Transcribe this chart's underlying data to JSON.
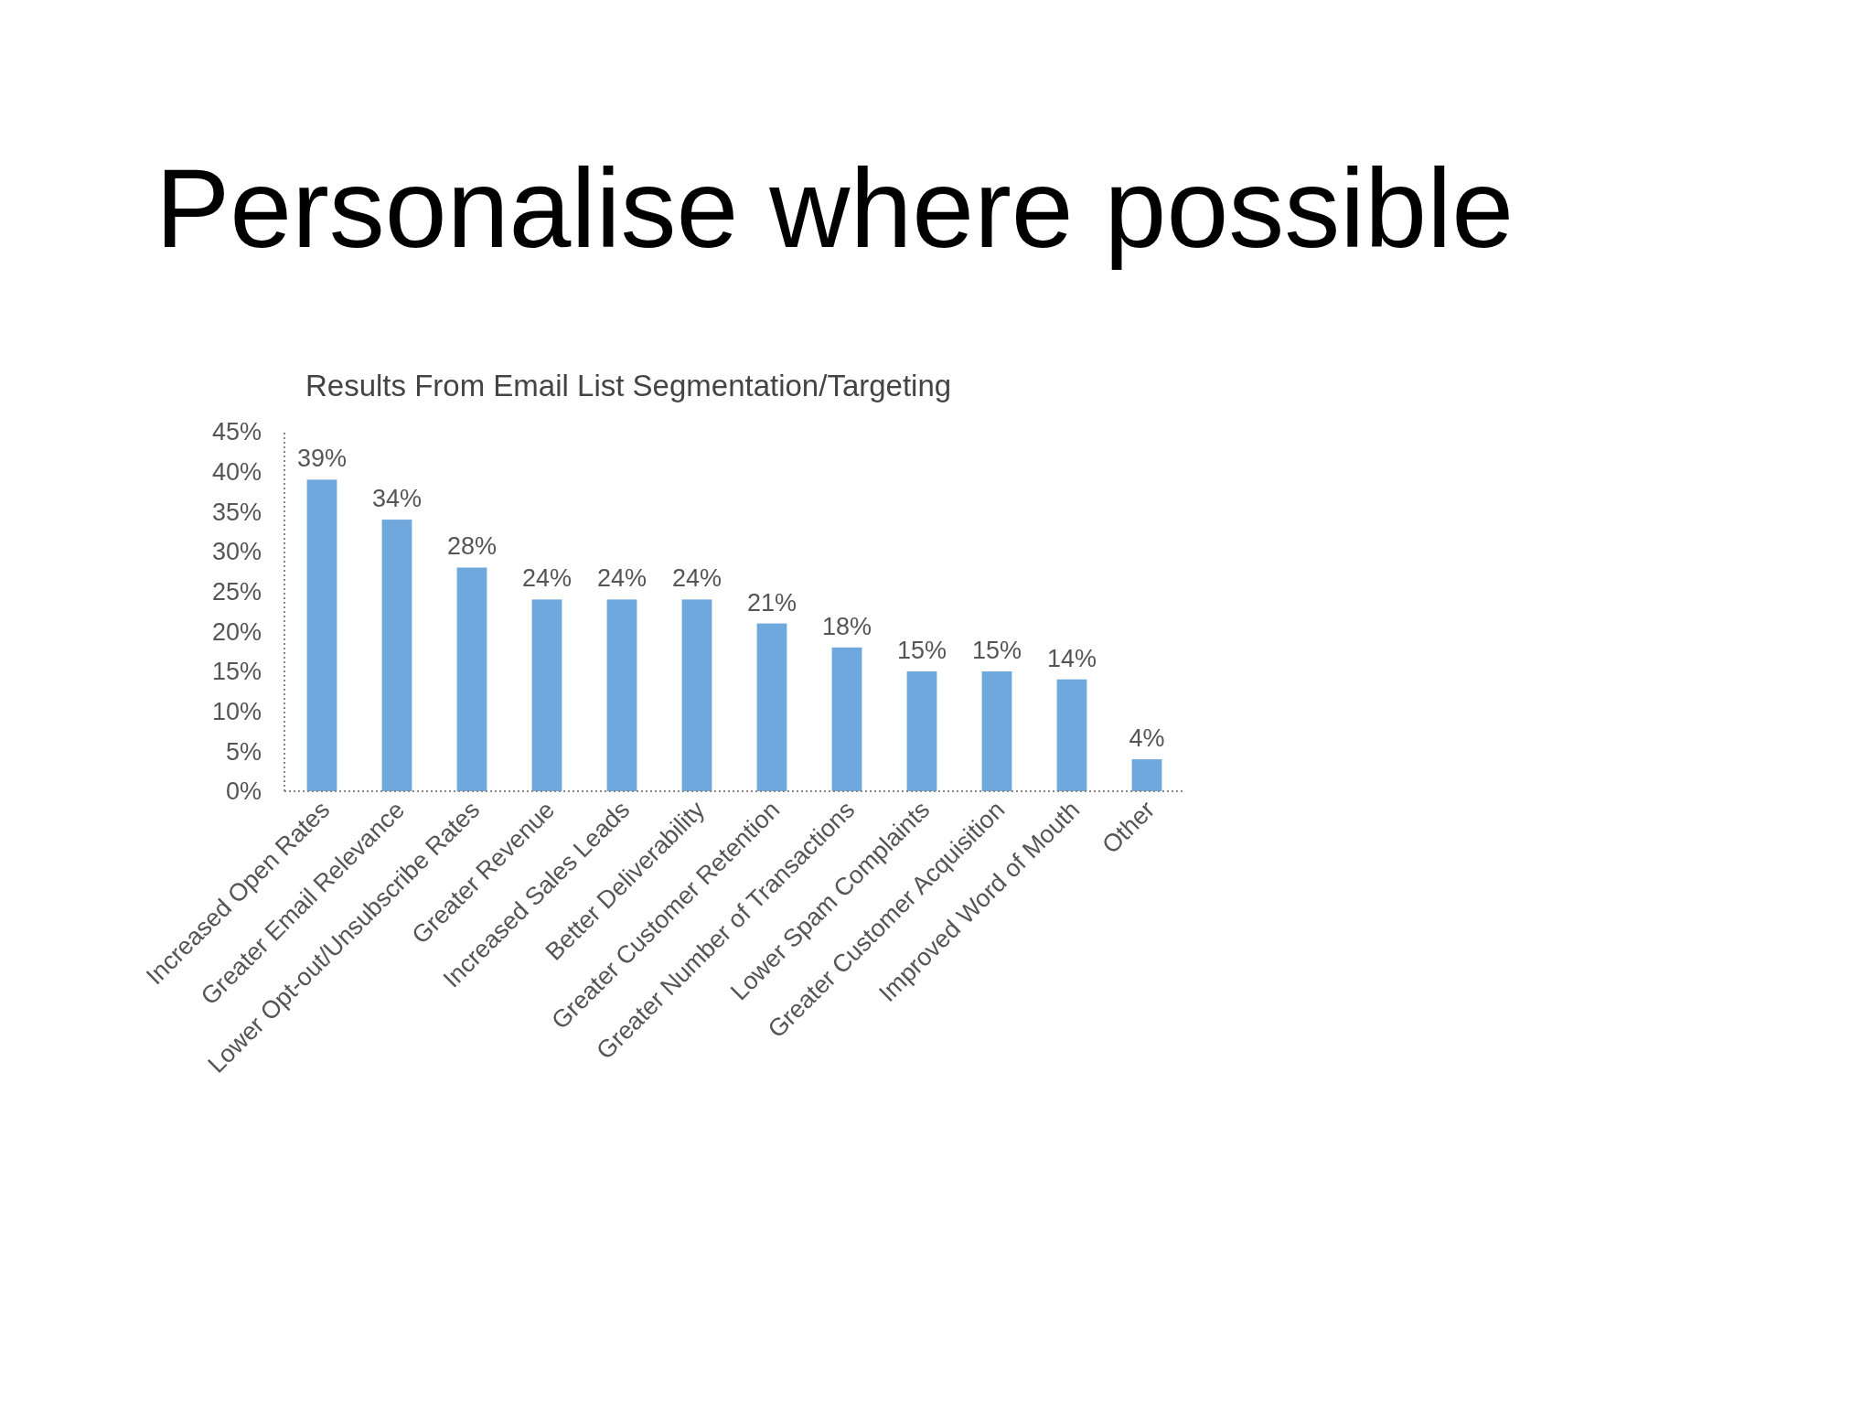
{
  "chart_data": {
    "type": "bar",
    "title": "Personalise where possible",
    "subtitle": "Results From Email List Segmentation/Targeting",
    "categories": [
      "Increased Open Rates",
      "Greater Email Relevance",
      "Lower Opt-out/Unsubscribe Rates",
      "Greater Revenue",
      "Increased Sales Leads",
      "Better Deliverability",
      "Greater Customer Retention",
      "Greater Number of Transactions",
      "Lower Spam Complaints",
      "Greater Customer Acquisition",
      "Improved Word of Mouth",
      "Other"
    ],
    "values": [
      39,
      34,
      28,
      24,
      24,
      24,
      21,
      18,
      15,
      15,
      14,
      4
    ],
    "value_labels": [
      "39%",
      "34%",
      "28%",
      "24%",
      "24%",
      "24%",
      "21%",
      "18%",
      "15%",
      "15%",
      "14%",
      "4%"
    ],
    "color": "#6fa8dc",
    "ylim": [
      0,
      45
    ],
    "yticks": [
      {
        "value": 0,
        "label": "0%"
      },
      {
        "value": 5,
        "label": "5%"
      },
      {
        "value": 10,
        "label": "10%"
      },
      {
        "value": 15,
        "label": "15%"
      },
      {
        "value": 20,
        "label": "20%"
      },
      {
        "value": 25,
        "label": "25%"
      },
      {
        "value": 30,
        "label": "30%"
      },
      {
        "value": 35,
        "label": "35%"
      },
      {
        "value": 40,
        "label": "40%"
      },
      {
        "value": 45,
        "label": "45%"
      }
    ],
    "grid": false
  }
}
